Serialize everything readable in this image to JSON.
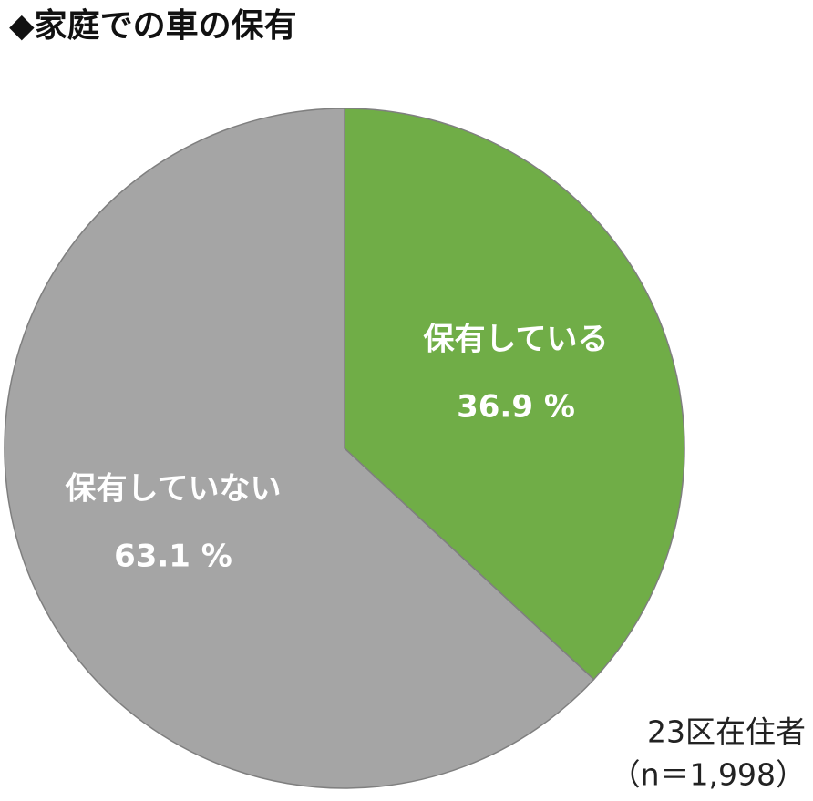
{
  "chart_data": {
    "type": "pie",
    "title": "◆家庭での車の保有",
    "categories": [
      "保有している",
      "保有していない"
    ],
    "values": [
      36.9,
      63.1
    ],
    "value_labels": [
      "36.9 %",
      "63.1 %"
    ],
    "colors": [
      "#70ad47",
      "#a5a5a5"
    ],
    "annotations": [
      "23区在住者",
      "（n＝1,998）"
    ]
  }
}
